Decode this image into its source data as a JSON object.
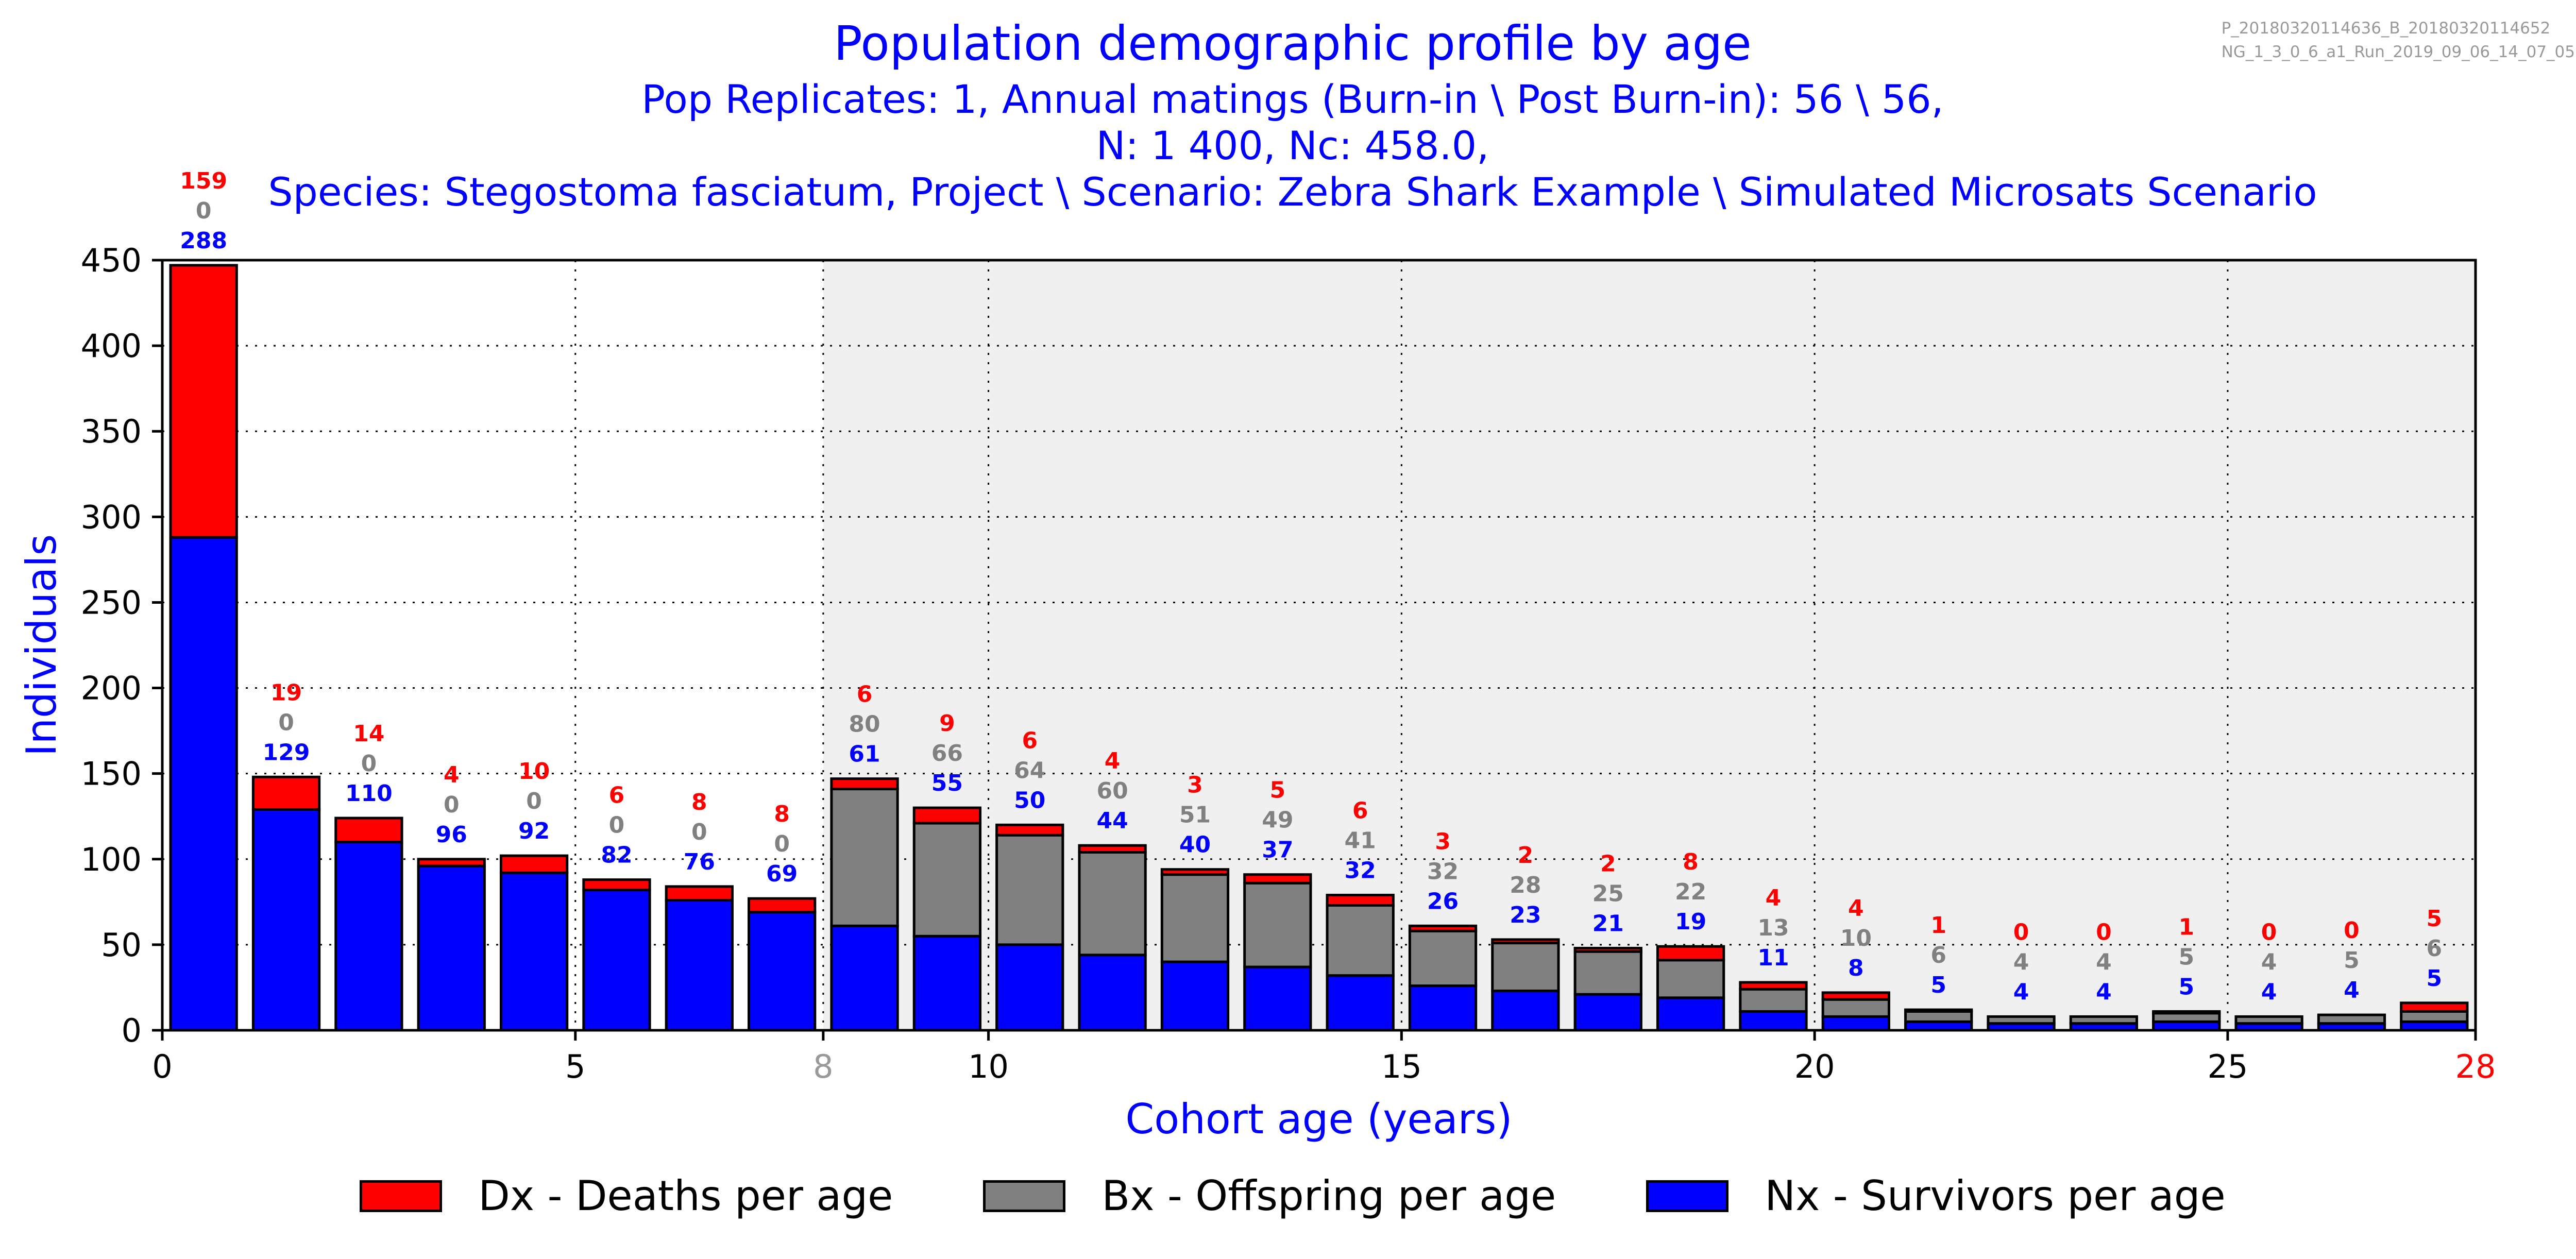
{
  "header": {
    "title": "Population demographic profile by age",
    "subtitle_1": "Pop Replicates: 1, Annual matings (Burn-in \\ Post Burn-in): 56 \\ 56,",
    "subtitle_2": "N: 1 400, Nc: 458.0,",
    "subtitle_3": "Species: Stegostoma fasciatum, Project \\ Scenario: Zebra Shark Example \\ Simulated Microsats Scenario",
    "run_id_1": "P_20180320114636_B_20180320114652",
    "run_id_2": "NG_1_3_0_6_a1_Run_2019_09_06_14_07_05"
  },
  "chart_data": {
    "type": "bar",
    "stacked": true,
    "xlabel": "Cohort age (years)",
    "ylabel": "Individuals",
    "xlim": [
      0,
      28
    ],
    "ylim": [
      0,
      450
    ],
    "xticks": [
      "0",
      "5",
      "8",
      "10",
      "15",
      "20",
      "25",
      "28"
    ],
    "xtick_values": [
      0,
      5,
      8,
      10,
      15,
      20,
      25,
      28
    ],
    "yticks": [
      0,
      50,
      100,
      150,
      200,
      250,
      300,
      350,
      400,
      450
    ],
    "grid": true,
    "shaded_region": [
      8,
      28
    ],
    "legend_position": "bottom",
    "colors": {
      "survivors": "#0000ff",
      "offspring": "#808080",
      "deaths": "#ff0000",
      "shade": "#f0f0f0",
      "x_tick_maturity": "#999999",
      "x_tick_max": "#ff0000"
    },
    "categories": [
      0,
      1,
      2,
      3,
      4,
      5,
      6,
      7,
      8,
      9,
      10,
      11,
      12,
      13,
      14,
      15,
      16,
      17,
      18,
      19,
      20,
      21,
      22,
      23,
      24,
      25,
      26,
      27
    ],
    "series": [
      {
        "name": "Nx - Survivors per age",
        "values": [
          288,
          129,
          110,
          96,
          92,
          82,
          76,
          69,
          61,
          55,
          50,
          44,
          40,
          37,
          32,
          26,
          23,
          21,
          19,
          11,
          8,
          5,
          4,
          4,
          5,
          4,
          4,
          5
        ]
      },
      {
        "name": "Bx - Offspring per age",
        "values": [
          0,
          0,
          0,
          0,
          0,
          0,
          0,
          0,
          80,
          66,
          64,
          60,
          51,
          49,
          41,
          32,
          28,
          25,
          22,
          13,
          10,
          6,
          4,
          4,
          5,
          4,
          5,
          6
        ]
      },
      {
        "name": "Dx - Deaths per age",
        "values": [
          159,
          19,
          14,
          4,
          10,
          6,
          8,
          8,
          6,
          9,
          6,
          4,
          3,
          5,
          6,
          3,
          2,
          2,
          8,
          4,
          4,
          1,
          0,
          0,
          1,
          0,
          0,
          5
        ]
      }
    ]
  }
}
